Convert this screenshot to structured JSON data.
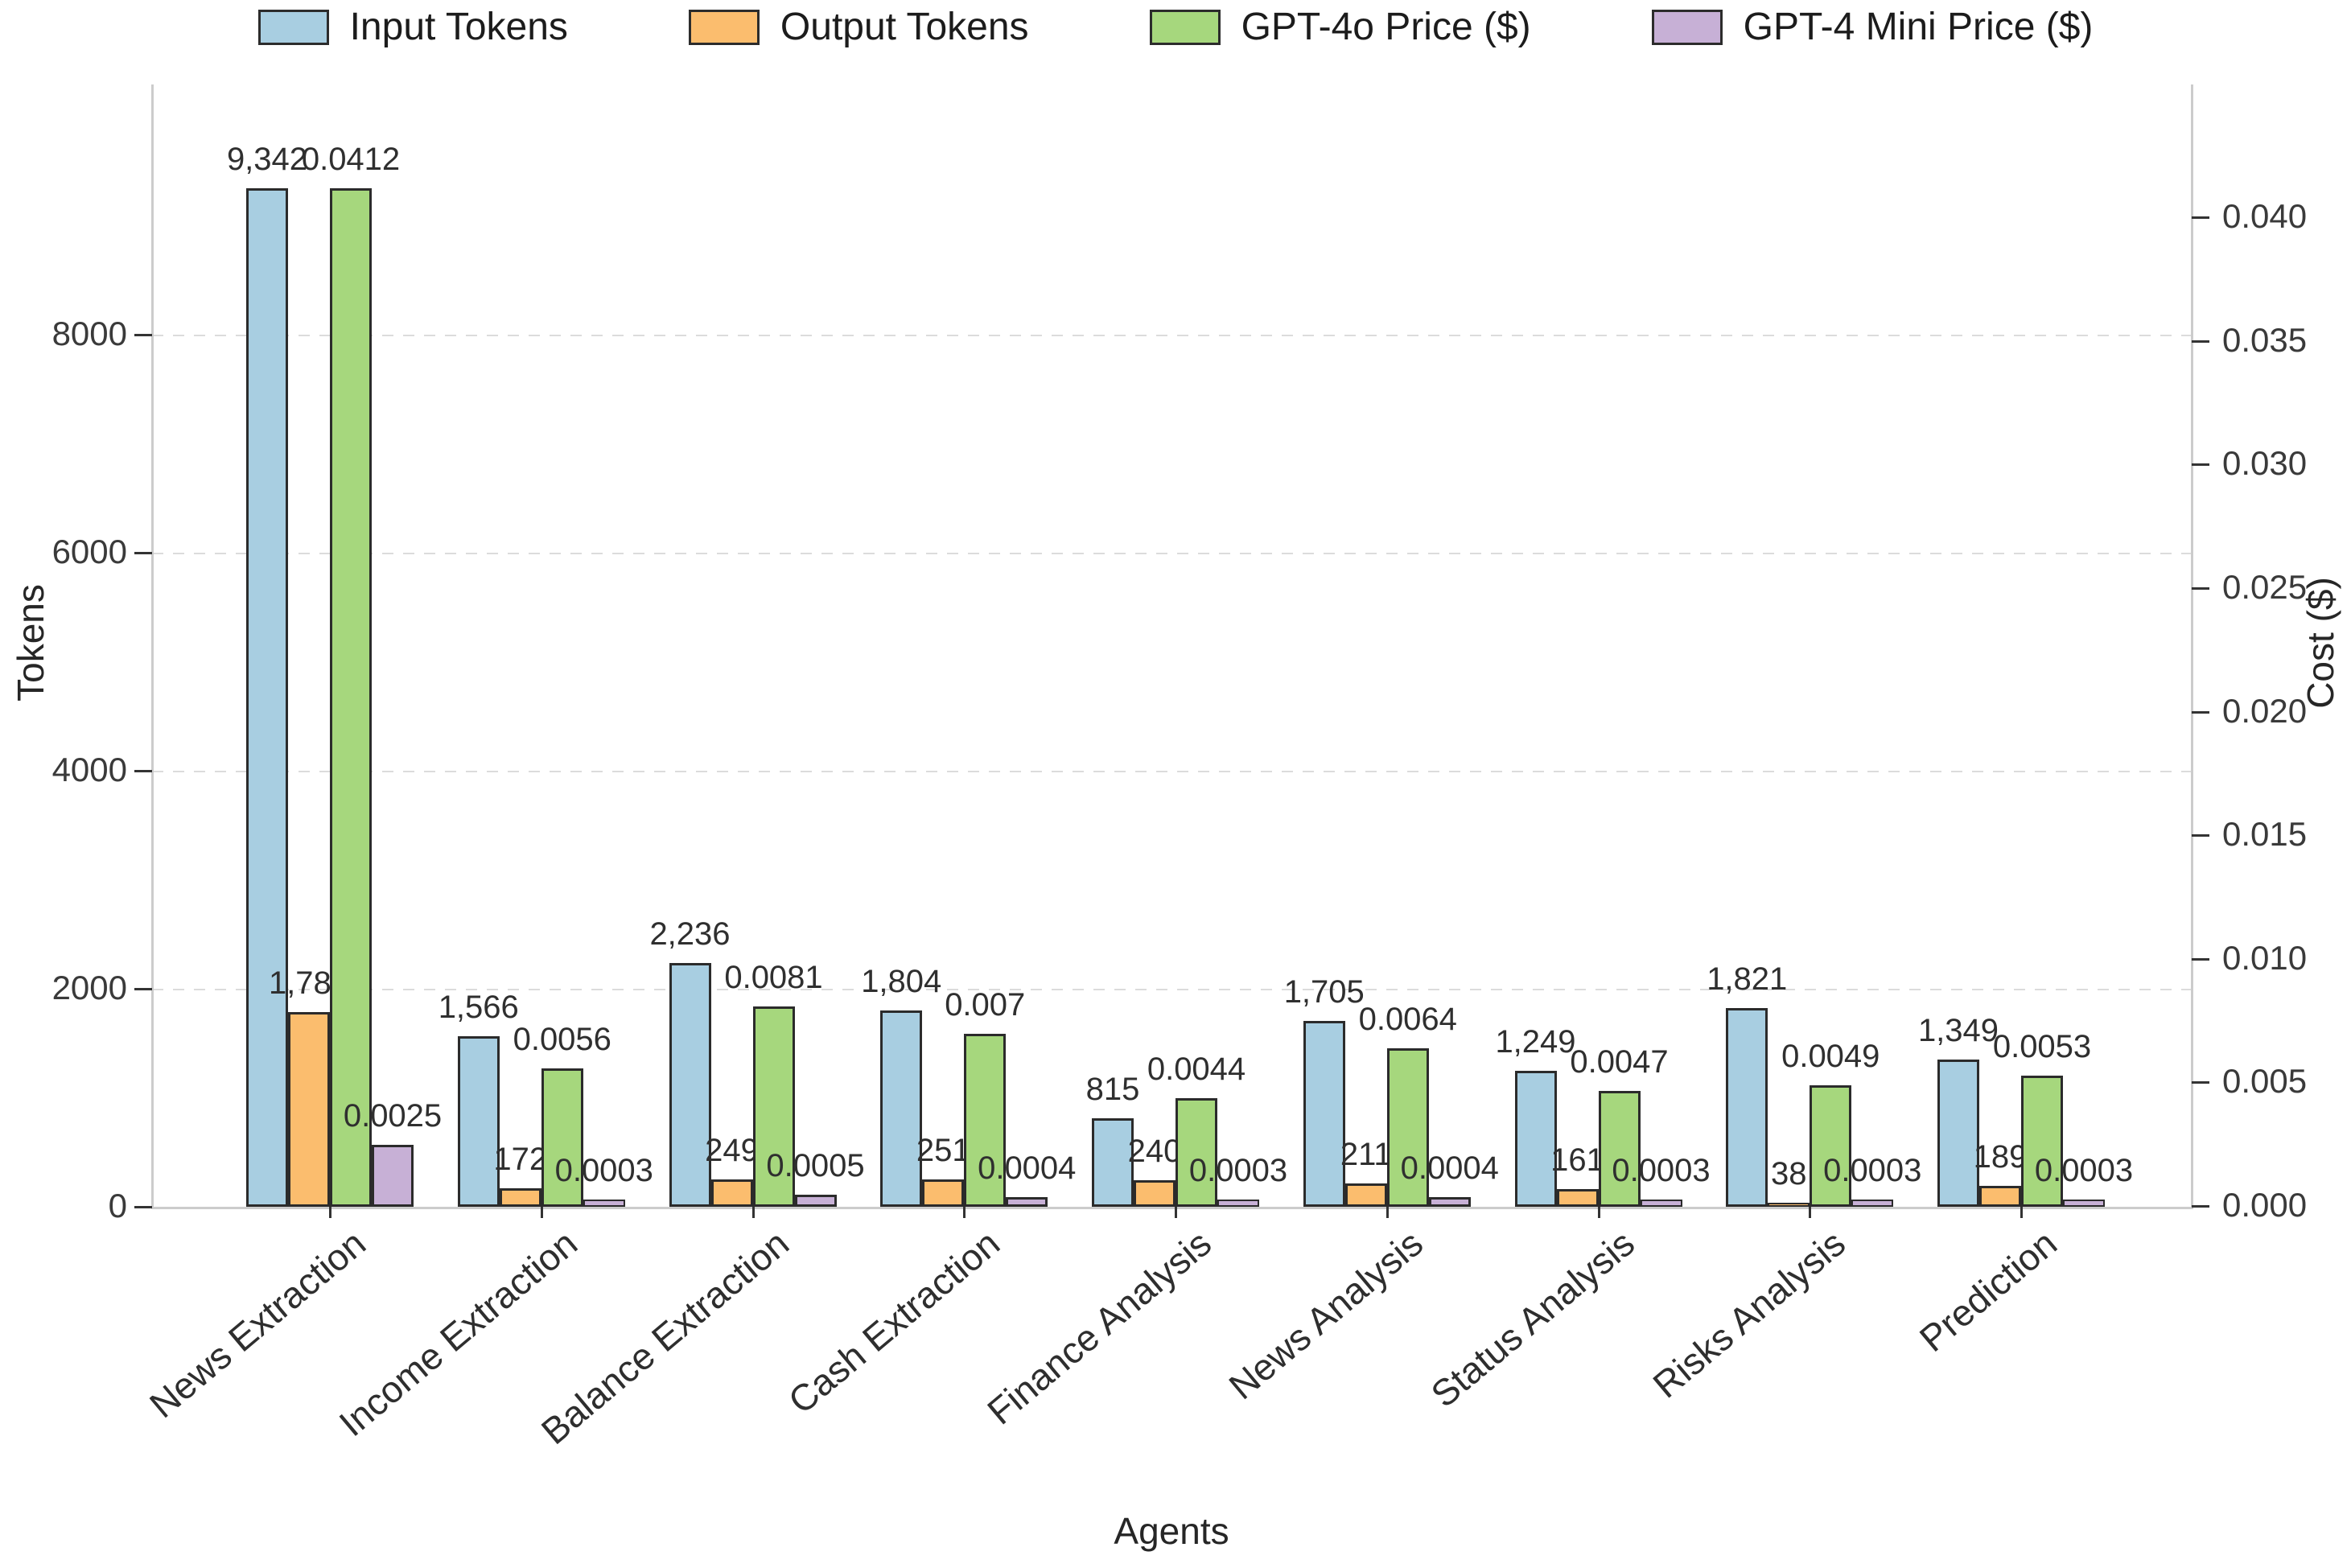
{
  "legend": {
    "items": [
      {
        "label": "Input Tokens",
        "color": "#a8cee1"
      },
      {
        "label": "Output Tokens",
        "color": "#fbbd6e"
      },
      {
        "label": "GPT-4o Price ($)",
        "color": "#a6d77d"
      },
      {
        "label": "GPT-4 Mini Price ($)",
        "color": "#c7b0d6"
      }
    ]
  },
  "axes": {
    "left": {
      "title": "Tokens",
      "tick_values": [
        0,
        2000,
        4000,
        6000,
        8000
      ],
      "tick_labels": [
        "0",
        "2000",
        "4000",
        "6000",
        "8000"
      ]
    },
    "right": {
      "title": "Cost ($)",
      "tick_labels": [
        "0.000",
        "0.005",
        "0.010",
        "0.015",
        "0.020",
        "0.025",
        "0.030",
        "0.035",
        "0.040"
      ],
      "tick_step": 0.005
    },
    "x": {
      "title": "Agents"
    }
  },
  "chart_data": {
    "type": "bar",
    "categories": [
      "News Extraction",
      "Income Extraction",
      "Balance Extraction",
      "Cash Extraction",
      "Finance Analysis",
      "News Analysis",
      "Status Analysis",
      "Risks Analysis",
      "Prediction"
    ],
    "series": [
      {
        "name": "Input Tokens",
        "axis": "tokens",
        "color": "#a8cee1",
        "values": [
          9342,
          1566,
          2236,
          1804,
          815,
          1705,
          1249,
          1821,
          1349
        ],
        "labels": [
          "9,342",
          "1,566",
          "2,236",
          "1,804",
          "815",
          "1,705",
          "1,249",
          "1,821",
          "1,349"
        ]
      },
      {
        "name": "Output Tokens",
        "axis": "tokens",
        "color": "#fbbd6e",
        "values": [
          1785,
          172,
          249,
          251,
          240,
          211,
          161,
          38,
          189
        ],
        "labels": [
          "1,785",
          "172",
          "249",
          "251",
          "240",
          "211",
          "161",
          "38",
          "189"
        ]
      },
      {
        "name": "GPT-4o Price ($)",
        "axis": "cost",
        "color": "#a6d77d",
        "values": [
          0.0412,
          0.0056,
          0.0081,
          0.007,
          0.0044,
          0.0064,
          0.0047,
          0.0049,
          0.0053
        ],
        "labels": [
          "0.0412",
          "0.0056",
          "0.0081",
          "0.007",
          "0.0044",
          "0.0064",
          "0.0047",
          "0.0049",
          "0.0053"
        ]
      },
      {
        "name": "GPT-4 Mini Price ($)",
        "axis": "cost",
        "color": "#c7b0d6",
        "values": [
          0.0025,
          0.0003,
          0.0005,
          0.0004,
          0.0003,
          0.0004,
          0.0003,
          0.0003,
          0.0003
        ],
        "labels": [
          "0.0025",
          "0.0003",
          "0.0005",
          "0.0004",
          "0.0003",
          "0.0004",
          "0.0003",
          "0.0003",
          "0.0003"
        ]
      }
    ],
    "title": "",
    "xlabel": "Agents",
    "ylabel": "Tokens",
    "y2label": "Cost ($)",
    "ylim": [
      0,
      10300
    ],
    "y2lim": [
      0,
      0.0454
    ],
    "grid": "horizontal-dashed-left-axis-only",
    "legend_position": "top-center",
    "bar_edge_color": "#2b2b2b"
  }
}
